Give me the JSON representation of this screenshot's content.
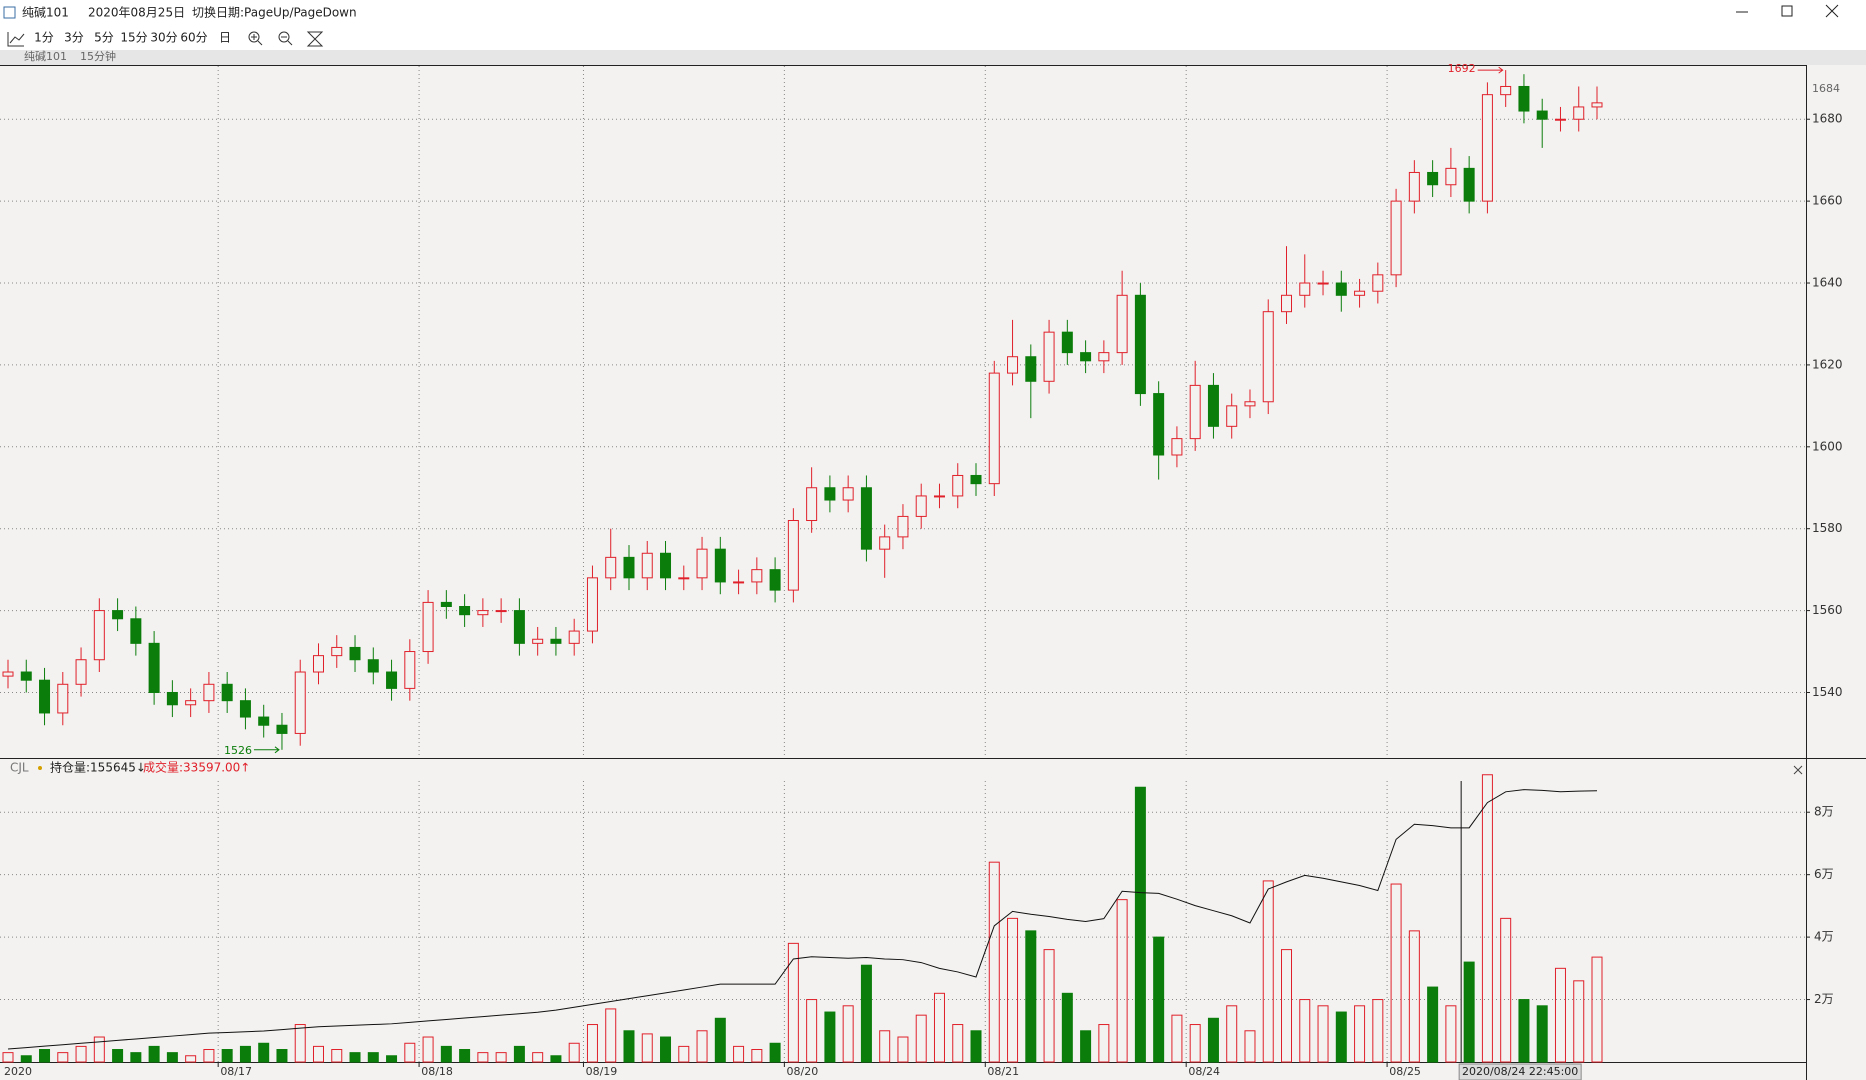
{
  "window": {
    "title": "纯碱101",
    "date": "2020年08月25日",
    "hint": "切换日期:PageUp/PageDown"
  },
  "toolbar": [
    "1分",
    "3分",
    "5分",
    "15分",
    "30分",
    "60分",
    "日"
  ],
  "subheader": {
    "symbol": "纯碱101",
    "period": "15分钟"
  },
  "chart_data": [
    {
      "type": "candlestick",
      "categories": [
        "2020",
        null,
        null,
        null,
        null,
        null,
        null,
        null,
        null,
        null,
        null,
        null,
        "08/17",
        null,
        null,
        null,
        null,
        null,
        null,
        null,
        null,
        null,
        null,
        "08/18",
        null,
        null,
        null,
        null,
        null,
        null,
        null,
        null,
        "08/19",
        null,
        null,
        null,
        null,
        null,
        null,
        null,
        null,
        null,
        null,
        "08/20",
        null,
        null,
        null,
        null,
        null,
        null,
        null,
        null,
        null,
        null,
        "08/21",
        null,
        null,
        null,
        null,
        null,
        null,
        null,
        null,
        null,
        null,
        "08/24",
        null,
        null,
        null,
        null,
        null,
        null,
        null,
        null,
        null,
        null,
        "08/25",
        null,
        null,
        null,
        null,
        null,
        null,
        null,
        null,
        null,
        null,
        null
      ],
      "open": [
        1544,
        1545,
        1543,
        1535,
        1542,
        1548,
        1560,
        1558,
        1552,
        1540,
        1537,
        1538,
        1542,
        1538,
        1534,
        1532,
        1530,
        1545,
        1549,
        1551,
        1548,
        1545,
        1541,
        1550,
        1562,
        1561,
        1559,
        1560,
        1560,
        1552,
        1553,
        1552,
        1555,
        1568,
        1573,
        1568,
        1574,
        1568,
        1568,
        1575,
        1567,
        1567,
        1570,
        1565,
        1582,
        1590,
        1587,
        1590,
        1575,
        1578,
        1583,
        1588,
        1588,
        1593,
        1591,
        1618,
        1622,
        1616,
        1628,
        1623,
        1621,
        1623,
        1637,
        1613,
        1598,
        1602,
        1615,
        1605,
        1610,
        1611,
        1633,
        1637,
        1640,
        1640,
        1637,
        1638,
        1642,
        1660,
        1667,
        1664,
        1668,
        1660,
        1686,
        1688,
        1682,
        1680,
        1680,
        1683
      ],
      "high": [
        1548,
        1548,
        1546,
        1545,
        1551,
        1563,
        1563,
        1561,
        1555,
        1543,
        1541,
        1545,
        1545,
        1541,
        1537,
        1535,
        1548,
        1552,
        1554,
        1554,
        1551,
        1548,
        1553,
        1565,
        1565,
        1564,
        1563,
        1563,
        1563,
        1556,
        1556,
        1558,
        1571,
        1580,
        1576,
        1577,
        1577,
        1571,
        1578,
        1578,
        1570,
        1573,
        1573,
        1585,
        1595,
        1593,
        1593,
        1593,
        1581,
        1586,
        1591,
        1591,
        1596,
        1596,
        1621,
        1631,
        1625,
        1631,
        1631,
        1626,
        1626,
        1643,
        1640,
        1616,
        1605,
        1621,
        1618,
        1613,
        1614,
        1636,
        1649,
        1647,
        1643,
        1643,
        1641,
        1645,
        1663,
        1670,
        1670,
        1673,
        1671,
        1689,
        1692,
        1691,
        1685,
        1683,
        1688,
        1688
      ],
      "low": [
        1541,
        1540,
        1532,
        1532,
        1539,
        1545,
        1555,
        1549,
        1537,
        1534,
        1534,
        1535,
        1535,
        1531,
        1529,
        1526,
        1527,
        1542,
        1546,
        1545,
        1542,
        1538,
        1538,
        1547,
        1558,
        1556,
        1556,
        1557,
        1549,
        1549,
        1549,
        1549,
        1552,
        1565,
        1565,
        1565,
        1565,
        1565,
        1565,
        1564,
        1564,
        1564,
        1562,
        1562,
        1579,
        1584,
        1584,
        1572,
        1568,
        1575,
        1580,
        1585,
        1585,
        1588,
        1588,
        1615,
        1607,
        1613,
        1620,
        1618,
        1618,
        1620,
        1610,
        1592,
        1595,
        1599,
        1602,
        1602,
        1607,
        1608,
        1630,
        1634,
        1637,
        1633,
        1634,
        1635,
        1639,
        1657,
        1661,
        1661,
        1657,
        1657,
        1683,
        1679,
        1673,
        1677,
        1677,
        1680
      ],
      "close": [
        1545,
        1543,
        1535,
        1542,
        1548,
        1560,
        1558,
        1552,
        1540,
        1537,
        1538,
        1542,
        1538,
        1534,
        1532,
        1530,
        1545,
        1549,
        1551,
        1548,
        1545,
        1541,
        1550,
        1562,
        1561,
        1559,
        1560,
        1560,
        1552,
        1553,
        1552,
        1555,
        1568,
        1573,
        1568,
        1574,
        1568,
        1568,
        1575,
        1567,
        1567,
        1570,
        1565,
        1582,
        1590,
        1587,
        1590,
        1575,
        1578,
        1583,
        1588,
        1588,
        1593,
        1591,
        1618,
        1622,
        1616,
        1628,
        1623,
        1621,
        1623,
        1637,
        1613,
        1598,
        1602,
        1615,
        1605,
        1610,
        1611,
        1633,
        1637,
        1640,
        1640,
        1637,
        1638,
        1642,
        1660,
        1667,
        1664,
        1668,
        1660,
        1686,
        1688,
        1682,
        1680,
        1680,
        1683,
        1684
      ],
      "up_color": "#e0202a",
      "down_color": "#0b7d0b",
      "ylim": [
        1524,
        1693
      ],
      "yticks": [
        1540,
        1560,
        1580,
        1600,
        1620,
        1640,
        1660,
        1680
      ],
      "grid": true,
      "cursor_label": "2020/08/24 22:45:00"
    },
    {
      "type": "volume",
      "title": "CJL",
      "indicator_labels": [
        "持仓量:155645↓",
        "成交量:33597.00↑"
      ],
      "ylim": [
        0,
        90000
      ],
      "yticks": [
        {
          "value": 20000,
          "label": "2万"
        },
        {
          "value": 40000,
          "label": "4万"
        },
        {
          "value": 60000,
          "label": "6万"
        },
        {
          "value": 80000,
          "label": "8万"
        }
      ],
      "y2lim": [
        118000,
        157000
      ],
      "grid": true,
      "series": [
        {
          "type": "bar",
          "values": [
            3000,
            2000,
            4000,
            3000,
            5000,
            8000,
            4000,
            3000,
            5000,
            3000,
            2000,
            4000,
            4000,
            5000,
            6000,
            4000,
            12000,
            5000,
            4000,
            3000,
            3000,
            2000,
            6000,
            8000,
            5000,
            4000,
            3000,
            3000,
            5000,
            3000,
            2000,
            6000,
            12000,
            17000,
            10000,
            9000,
            8000,
            5000,
            10000,
            14000,
            5000,
            4000,
            6000,
            38000,
            20000,
            16000,
            18000,
            31000,
            10000,
            8000,
            15000,
            22000,
            12000,
            10000,
            64000,
            46000,
            42000,
            36000,
            22000,
            10000,
            12000,
            52000,
            88000,
            40000,
            15000,
            12000,
            14000,
            18000,
            10000,
            58000,
            36000,
            20000,
            18000,
            16000,
            18000,
            20000,
            57000,
            42000,
            24000,
            18000,
            32000,
            92000,
            46000,
            20000,
            18000,
            30000,
            26000,
            33597
          ]
        },
        {
          "type": "line",
          "axis": "y2",
          "color": "#111111",
          "values": [
            119800,
            120000,
            120200,
            120400,
            120600,
            120800,
            121000,
            121200,
            121400,
            121600,
            121800,
            122000,
            122100,
            122200,
            122300,
            122500,
            122700,
            122900,
            123000,
            123100,
            123200,
            123300,
            123500,
            123700,
            123900,
            124100,
            124300,
            124500,
            124700,
            124900,
            125200,
            125600,
            126000,
            126400,
            126800,
            127200,
            127600,
            128000,
            128400,
            128800,
            128800,
            128800,
            128800,
            132300,
            132600,
            132500,
            132400,
            132500,
            132300,
            132200,
            131800,
            131000,
            130500,
            129800,
            136900,
            138900,
            138500,
            138200,
            137800,
            137500,
            137900,
            141700,
            141500,
            141400,
            140600,
            139700,
            139000,
            138300,
            137300,
            142000,
            143000,
            143900,
            143500,
            143000,
            142500,
            141800,
            148900,
            151000,
            150800,
            150500,
            150500,
            154000,
            155500,
            155800,
            155700,
            155500,
            155600,
            155645
          ]
        }
      ]
    }
  ]
}
